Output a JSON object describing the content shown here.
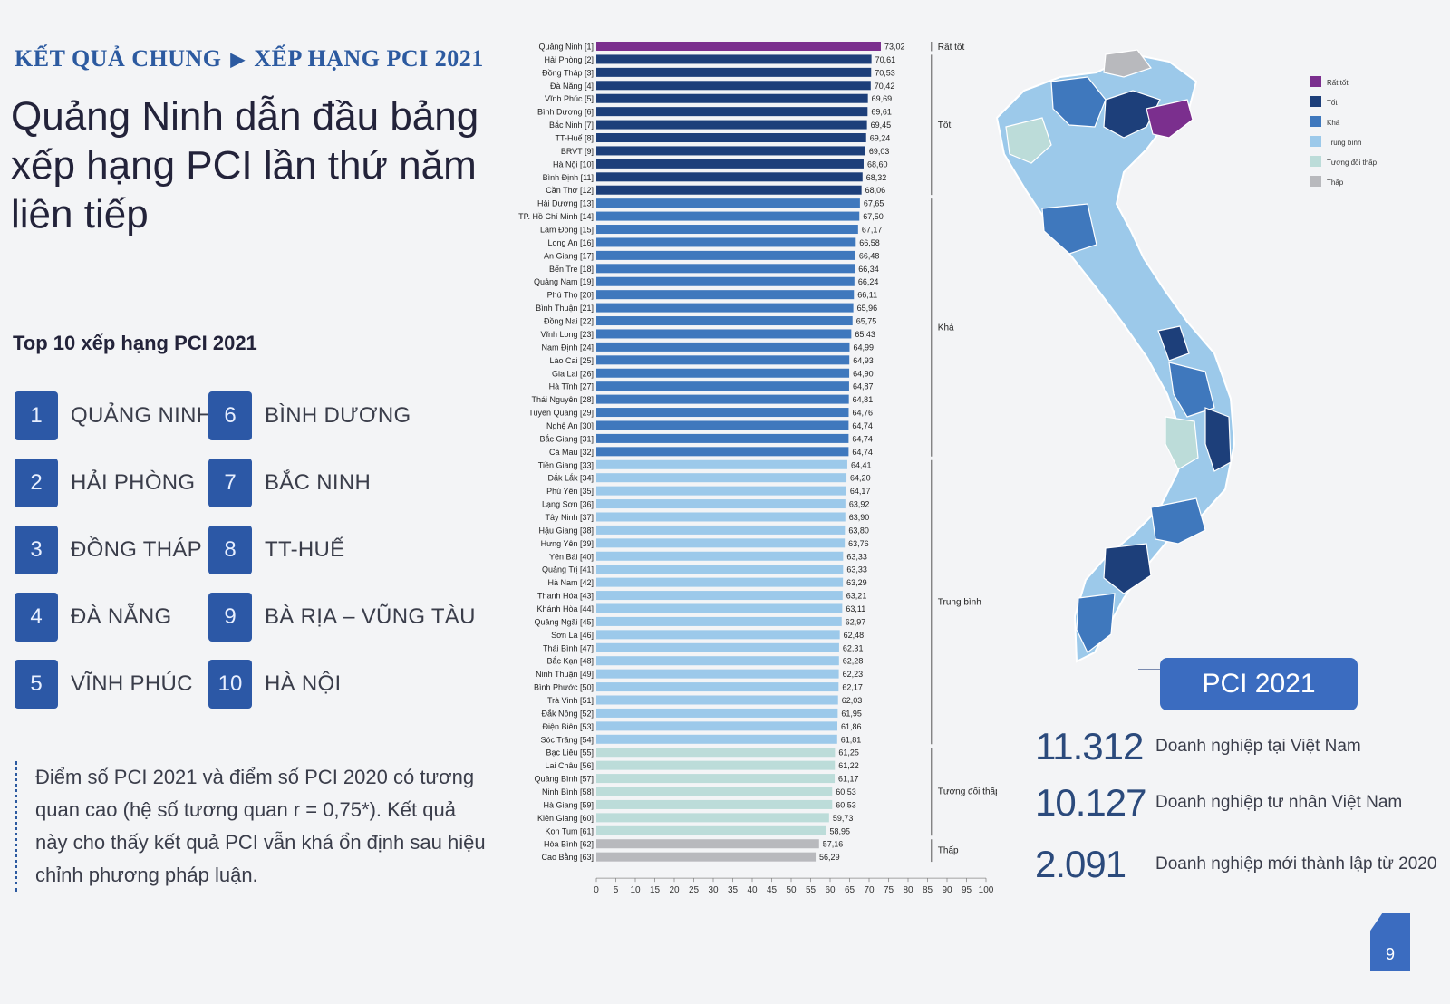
{
  "breadcrumb": {
    "section": "KẾT QUẢ CHUNG",
    "separator": "▶",
    "page": "XẾP HẠNG PCI 2021"
  },
  "headline": "Quảng Ninh dẫn đầu bảng xếp hạng PCI lần thứ năm liên tiếp",
  "top10": {
    "title": "Top 10 xếp hạng PCI 2021",
    "items": [
      {
        "rank": "1",
        "name": "QUẢNG NINH"
      },
      {
        "rank": "2",
        "name": "HẢI PHÒNG"
      },
      {
        "rank": "3",
        "name": "ĐỒNG THÁP"
      },
      {
        "rank": "4",
        "name": "ĐÀ NẴNG"
      },
      {
        "rank": "5",
        "name": "VĨNH PHÚC"
      },
      {
        "rank": "6",
        "name": "BÌNH DƯƠNG"
      },
      {
        "rank": "7",
        "name": "BẮC NINH"
      },
      {
        "rank": "8",
        "name": "TT-HUẾ"
      },
      {
        "rank": "9",
        "name": "BÀ RỊA – VŨNG TÀU"
      },
      {
        "rank": "10",
        "name": "HÀ NỘI"
      }
    ]
  },
  "note": "Điểm số PCI 2021 và điểm số PCI 2020 có tương quan cao (hệ số tương quan r = 0,75*). Kết quả này cho thấy kết quả PCI vẫn khá ổn định sau hiệu chỉnh phương pháp luận.",
  "colors": {
    "rat_tot": "#7b2f8e",
    "tot": "#1d3f7a",
    "kha": "#3f78bd",
    "trung_binh": "#9cc9ea",
    "tuong_doi_thap": "#bcdcd9",
    "thap": "#b8b9bd",
    "accent": "#2c5aa0"
  },
  "chart_data": {
    "type": "bar",
    "orientation": "horizontal",
    "xlim": [
      0,
      100
    ],
    "xticks": [
      "0",
      "5",
      "10",
      "15",
      "20",
      "25",
      "30",
      "35",
      "40",
      "45",
      "50",
      "55",
      "60",
      "65",
      "70",
      "75",
      "80",
      "85",
      "90",
      "95",
      "100"
    ],
    "categories": [
      "Quảng Ninh [1]",
      "Hải Phòng [2]",
      "Đồng Tháp [3]",
      "Đà Nẵng [4]",
      "Vĩnh Phúc [5]",
      "Bình Dương [6]",
      "Bắc Ninh [7]",
      "TT-Huế [8]",
      "BRVT [9]",
      "Hà Nội [10]",
      "Bình Định [11]",
      "Cần Thơ [12]",
      "Hải Dương [13]",
      "TP. Hồ Chí Minh [14]",
      "Lâm Đồng [15]",
      "Long An [16]",
      "An Giang [17]",
      "Bến Tre [18]",
      "Quảng Nam [19]",
      "Phú Thọ [20]",
      "Bình Thuận [21]",
      "Đồng Nai [22]",
      "Vĩnh Long [23]",
      "Nam Định [24]",
      "Lào Cai [25]",
      "Gia Lai [26]",
      "Hà Tĩnh [27]",
      "Thái Nguyên [28]",
      "Tuyên Quang [29]",
      "Nghệ An [30]",
      "Bắc Giang [31]",
      "Cà Mau [32]",
      "Tiền Giang [33]",
      "Đắk Lắk [34]",
      "Phú Yên [35]",
      "Lạng Sơn [36]",
      "Tây Ninh [37]",
      "Hậu Giang [38]",
      "Hưng Yên [39]",
      "Yên Bái [40]",
      "Quảng Trị [41]",
      "Hà Nam [42]",
      "Thanh Hóa [43]",
      "Khánh Hòa [44]",
      "Quảng Ngãi [45]",
      "Sơn La [46]",
      "Thái Bình [47]",
      "Bắc Kạn [48]",
      "Ninh Thuận [49]",
      "Bình Phước [50]",
      "Trà Vinh [51]",
      "Đắk Nông [52]",
      "Điện Biên [53]",
      "Sóc Trăng [54]",
      "Bạc Liêu [55]",
      "Lai Châu [56]",
      "Quảng Bình [57]",
      "Ninh Bình [58]",
      "Hà Giang [59]",
      "Kiên Giang [60]",
      "Kon Tum [61]",
      "Hòa Bình [62]",
      "Cao Bằng [63]"
    ],
    "values": [
      73.02,
      70.61,
      70.53,
      70.42,
      69.69,
      69.61,
      69.45,
      69.24,
      69.03,
      68.6,
      68.32,
      68.06,
      67.65,
      67.5,
      67.17,
      66.58,
      66.48,
      66.34,
      66.24,
      66.11,
      65.96,
      65.75,
      65.43,
      64.99,
      64.93,
      64.9,
      64.87,
      64.81,
      64.76,
      64.74,
      64.74,
      64.74,
      64.41,
      64.2,
      64.17,
      63.92,
      63.9,
      63.8,
      63.76,
      63.33,
      63.33,
      63.29,
      63.21,
      63.11,
      62.97,
      62.48,
      62.31,
      62.28,
      62.23,
      62.17,
      62.03,
      61.95,
      61.86,
      61.81,
      61.25,
      61.22,
      61.17,
      60.53,
      60.53,
      59.73,
      58.95,
      57.16,
      56.29
    ],
    "labels": [
      "73,02",
      "70,61",
      "70,53",
      "70,42",
      "69,69",
      "69,61",
      "69,45",
      "69,24",
      "69,03",
      "68,60",
      "68,32",
      "68,06",
      "67,65",
      "67,50",
      "67,17",
      "66,58",
      "66,48",
      "66,34",
      "66,24",
      "66,11",
      "65,96",
      "65,75",
      "65,43",
      "64,99",
      "64,93",
      "64,90",
      "64,87",
      "64,81",
      "64,76",
      "64,74",
      "64,74",
      "64,74",
      "64,41",
      "64,20",
      "64,17",
      "63,92",
      "63,90",
      "63,80",
      "63,76",
      "63,33",
      "63,33",
      "63,29",
      "63,21",
      "63,11",
      "62,97",
      "62,48",
      "62,31",
      "62,28",
      "62,23",
      "62,17",
      "62,03",
      "61,95",
      "61,86",
      "61,81",
      "61,25",
      "61,22",
      "61,17",
      "60,53",
      "60,53",
      "59,73",
      "58,95",
      "57,16",
      "56,29"
    ],
    "groups": [
      {
        "name": "Rất tốt",
        "from": 0,
        "to": 0,
        "color_key": "rat_tot"
      },
      {
        "name": "Tốt",
        "from": 1,
        "to": 11,
        "color_key": "tot"
      },
      {
        "name": "Khá",
        "from": 12,
        "to": 31,
        "color_key": "kha"
      },
      {
        "name": "Trung bình",
        "from": 32,
        "to": 53,
        "color_key": "trung_binh"
      },
      {
        "name": "Tương đối thấp",
        "from": 54,
        "to": 60,
        "color_key": "tuong_doi_thap"
      },
      {
        "name": "Thấp",
        "from": 61,
        "to": 62,
        "color_key": "thap"
      }
    ]
  },
  "map": {
    "legend": [
      "Rất tốt",
      "Tốt",
      "Khá",
      "Trung bình",
      "Tương đối thấp",
      "Thấp"
    ]
  },
  "pci_box": "PCI 2021",
  "stats": [
    {
      "value": "11.312",
      "label": "Doanh nghiệp tại Việt Nam"
    },
    {
      "value": "10.127",
      "label": "Doanh nghiệp tư nhân Việt Nam"
    },
    {
      "value": "2.091",
      "label": "Doanh nghiệp mới thành lập từ 2020"
    }
  ],
  "page_number": "9"
}
